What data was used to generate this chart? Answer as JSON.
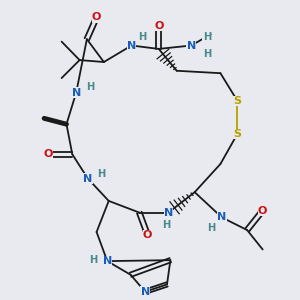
{
  "bg_color": "#e8eaf0",
  "ring_color": "#1a1a1a",
  "N_color": "#1a5cb8",
  "O_color": "#cc1111",
  "S_color": "#b8a000",
  "H_color": "#4a8a8a",
  "figsize": [
    3.0,
    3.0
  ],
  "dpi": 100,
  "xlim": [
    -2.8,
    2.8
  ],
  "ylim": [
    -3.2,
    2.8
  ]
}
